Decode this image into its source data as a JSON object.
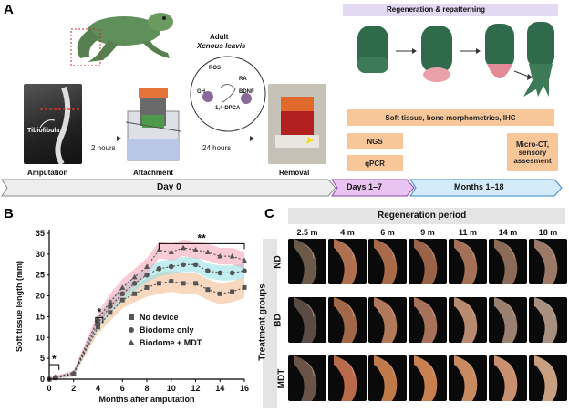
{
  "panels": {
    "a": "A",
    "b": "B",
    "c": "C"
  },
  "panel_a": {
    "species_line1": "Adult",
    "species_line2": "Xenous leavis",
    "molecules": [
      "ROS",
      "RA",
      "GH",
      "BDNF",
      "1,4-DPCA"
    ],
    "tibiofibula": "Tibiofibula",
    "steps": {
      "amputation": "Amputation",
      "attachment": "Attachment",
      "removal": "Removal"
    },
    "times": {
      "t1": "2 hours",
      "t2": "24 hours"
    },
    "regen_header": "Regeneration & repatterning",
    "assays": {
      "soft": "Soft tissue, bone morphometrics, IHC",
      "ngs": "NGS",
      "qpcr": "qPCR",
      "micro": "Micro-CT, sensory assesment"
    },
    "timeline": {
      "day0": "Day 0",
      "days": "Days 1–7",
      "months": "Months 1–18"
    }
  },
  "chart_data": {
    "type": "line",
    "xlabel": "Months after amputation",
    "ylabel": "Soft tissue length (mm)",
    "xlim": [
      0,
      16
    ],
    "ylim": [
      0,
      35
    ],
    "xticks": [
      0,
      2,
      4,
      6,
      8,
      10,
      12,
      14,
      16
    ],
    "yticks": [
      0,
      5,
      10,
      15,
      20,
      25,
      30,
      35
    ],
    "x": [
      0,
      0.5,
      2,
      4,
      5,
      6,
      7,
      8,
      9,
      10,
      11,
      12,
      13,
      14,
      15,
      16
    ],
    "series": [
      {
        "name": "No device",
        "color": "#444444",
        "band": "#f3b98a",
        "marker": "square",
        "values": [
          0,
          0.3,
          1.2,
          12.5,
          16,
          19,
          20.5,
          22,
          23,
          23.5,
          23,
          23,
          21.5,
          20.5,
          21,
          22
        ],
        "err": [
          0,
          0.3,
          0.6,
          1.5,
          2,
          2,
          2,
          2.2,
          2.5,
          2.5,
          2.5,
          2.5,
          2.5,
          2.5,
          2.5,
          2.5
        ]
      },
      {
        "name": "Biodome only",
        "color": "#444444",
        "band": "#8fdfe6",
        "marker": "circle",
        "values": [
          0,
          0.4,
          1.3,
          13.5,
          17.5,
          20.5,
          23,
          25,
          26.5,
          27,
          27.5,
          27.5,
          26,
          25.5,
          25.5,
          26
        ],
        "err": [
          0,
          0.3,
          0.6,
          1.5,
          1.8,
          1.8,
          1.8,
          1.8,
          1.8,
          1.8,
          1.8,
          1.8,
          1.8,
          1.8,
          1.8,
          1.8
        ]
      },
      {
        "name": "Biodome + MDT",
        "color": "#444444",
        "band": "#f4a0b4",
        "marker": "triangle",
        "values": [
          0,
          0.5,
          1.5,
          14.5,
          18.5,
          22,
          24.5,
          27,
          31,
          30.5,
          31.5,
          31,
          30.5,
          29.5,
          29.5,
          28.5
        ],
        "err": [
          0,
          0.3,
          0.6,
          1.5,
          2,
          2,
          2,
          2,
          2,
          2,
          2,
          2,
          2,
          2,
          2,
          2
        ]
      }
    ],
    "significance": [
      {
        "label": "*",
        "x1": 0,
        "x2": 0.8,
        "y": 3.5
      },
      {
        "label": "*",
        "x1": 3.8,
        "x2": 4.4,
        "y": 14.8
      },
      {
        "label": "**",
        "x1": 9,
        "x2": 16,
        "y": 32.5
      }
    ]
  },
  "panel_c": {
    "title": "Regeneration period",
    "columns": [
      "2.5 m",
      "4 m",
      "6 m",
      "9 m",
      "11 m",
      "14 m",
      "18 m"
    ],
    "rows": [
      "ND",
      "BD",
      "MDT"
    ],
    "ylabel": "Treatment groups"
  }
}
